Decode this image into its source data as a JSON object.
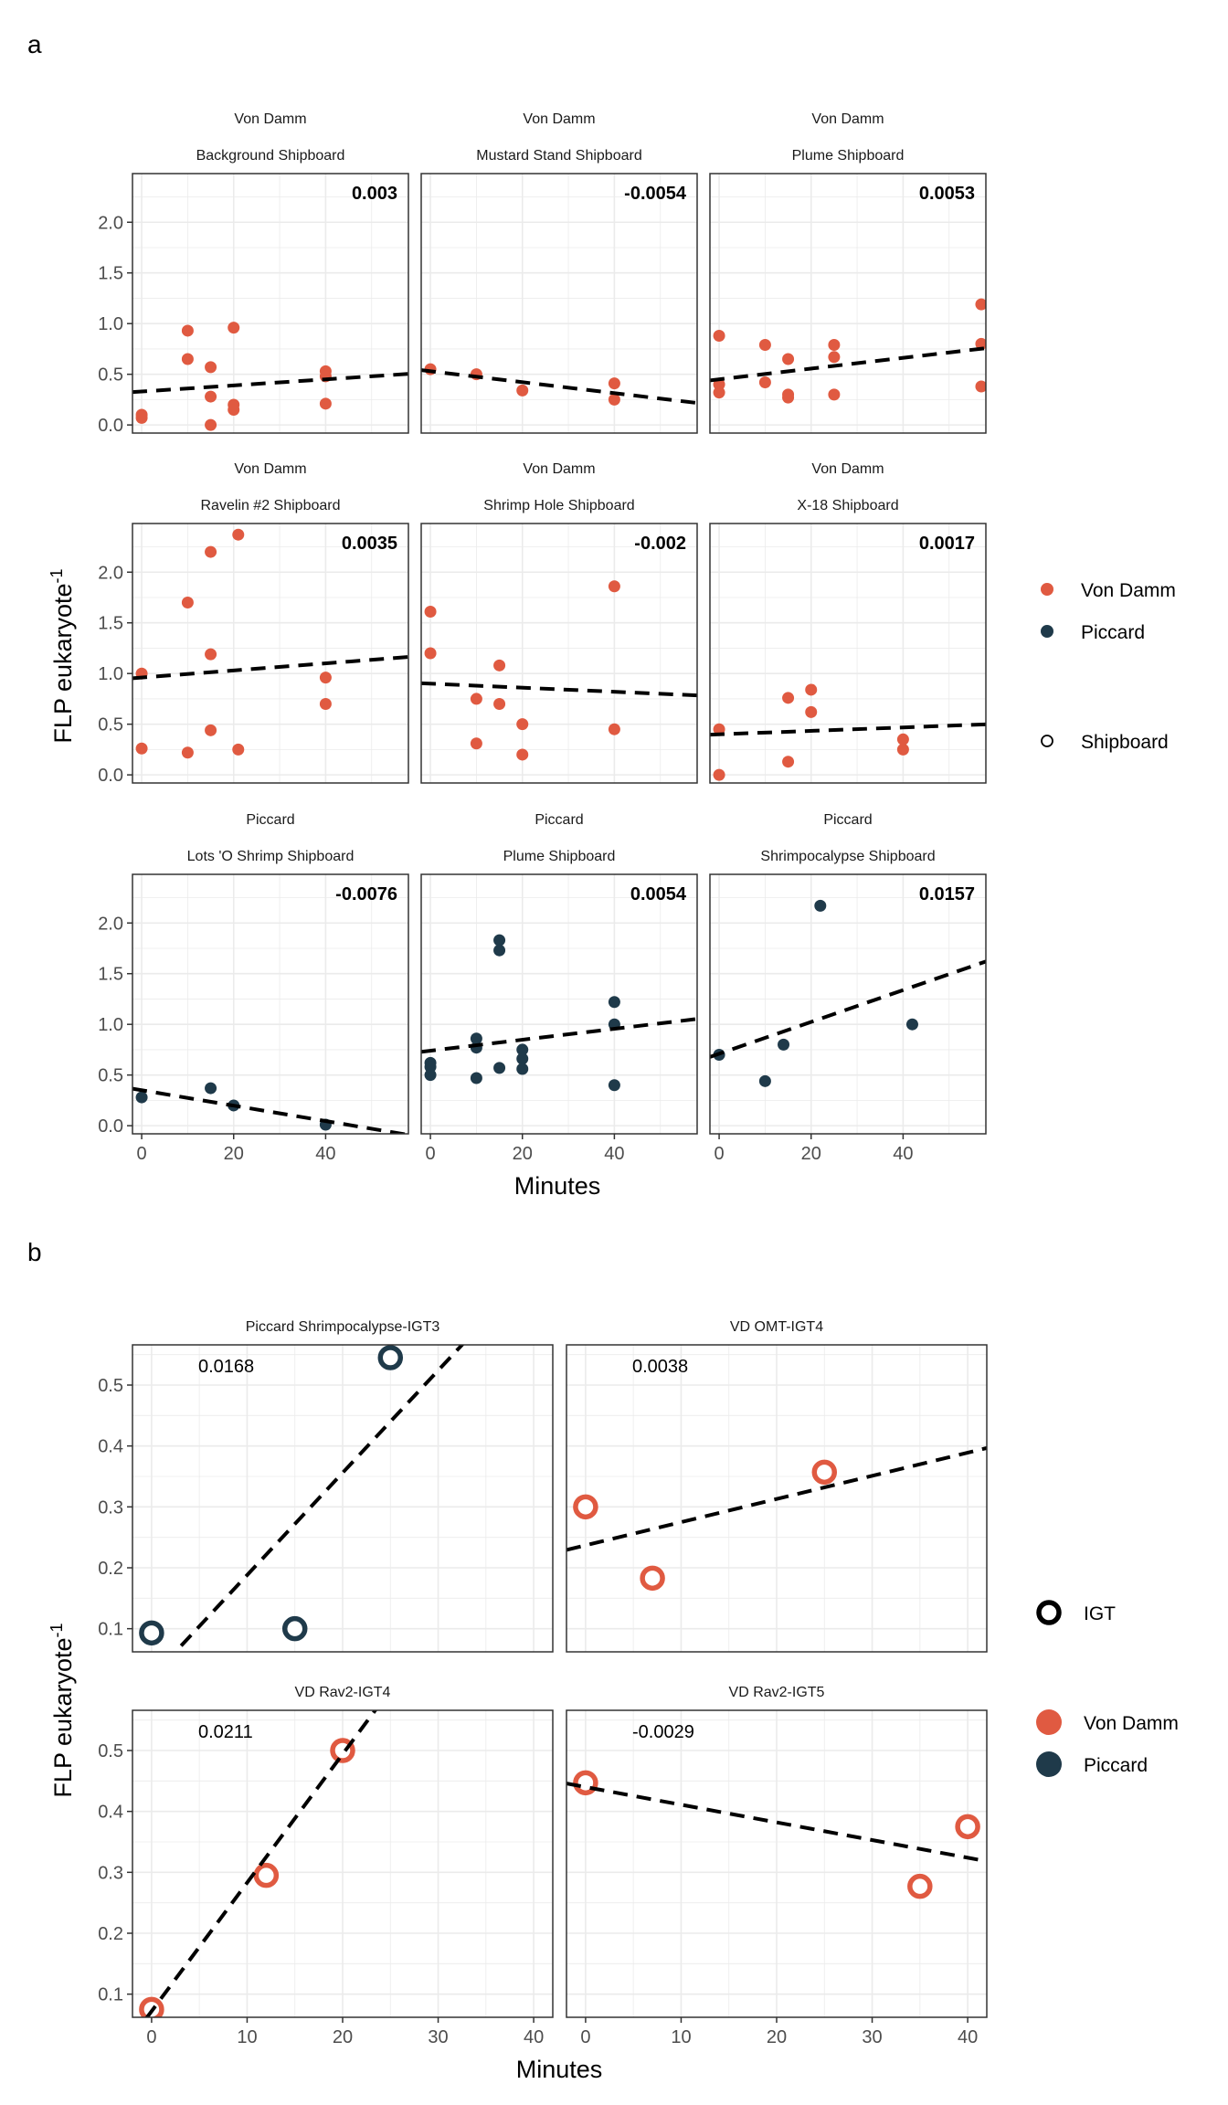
{
  "colors": {
    "Von Damm": "#e05a41",
    "Piccard": "#1f3a4a"
  },
  "chart_data": [
    {
      "panel": "a",
      "type": "scatter",
      "ylabel": "FLP eukaryote",
      "ylabel_sup": "-1",
      "xlabel": "Minutes",
      "xlim": [
        -2,
        58
      ],
      "ylim": [
        -0.08,
        2.48
      ],
      "xticks": [
        0,
        20,
        40
      ],
      "yticks": [
        0.0,
        0.5,
        1.0,
        1.5,
        2.0
      ],
      "ytick_labels": [
        "0.0",
        "0.5",
        "1.0",
        "1.5",
        "2.0"
      ],
      "legend": {
        "position": "right",
        "vent_title": "",
        "vents": [
          "Von Damm",
          "Piccard"
        ],
        "type_entries": [
          "Shipboard"
        ]
      },
      "facets": [
        {
          "site": "Von Damm",
          "sample": "Background Shipboard",
          "vent": "Von Damm",
          "slope_label": "0.003",
          "line": [
            0.33,
            0.003
          ],
          "points": [
            [
              0,
              0.07
            ],
            [
              0,
              0.1
            ],
            [
              10,
              0.93
            ],
            [
              10,
              0.65
            ],
            [
              15,
              0.57
            ],
            [
              15,
              0.28
            ],
            [
              15,
              0.0
            ],
            [
              20,
              0.96
            ],
            [
              20,
              0.2
            ],
            [
              20,
              0.15
            ],
            [
              40,
              0.53
            ],
            [
              40,
              0.48
            ],
            [
              40,
              0.21
            ]
          ]
        },
        {
          "site": "Von Damm",
          "sample": "Mustard Stand Shipboard",
          "vent": "Von Damm",
          "slope_label": "-0.0054",
          "line": [
            0.53,
            -0.0054
          ],
          "points": [
            [
              0,
              0.55
            ],
            [
              10,
              0.5
            ],
            [
              20,
              0.34
            ],
            [
              40,
              0.41
            ],
            [
              40,
              0.25
            ]
          ]
        },
        {
          "site": "Von Damm",
          "sample": "Plume Shipboard",
          "vent": "Von Damm",
          "slope_label": "0.0053",
          "line": [
            0.45,
            0.0053
          ],
          "points": [
            [
              0,
              0.88
            ],
            [
              0,
              0.4
            ],
            [
              0,
              0.32
            ],
            [
              10,
              0.79
            ],
            [
              10,
              0.42
            ],
            [
              15,
              0.65
            ],
            [
              15,
              0.3
            ],
            [
              15,
              0.27
            ],
            [
              25,
              0.79
            ],
            [
              25,
              0.67
            ],
            [
              25,
              0.3
            ],
            [
              57,
              1.19
            ],
            [
              57,
              0.8
            ],
            [
              57,
              0.38
            ]
          ]
        },
        {
          "site": "Von Damm",
          "sample": "Ravelin #2 Shipboard",
          "vent": "Von Damm",
          "slope_label": "0.0035",
          "line": [
            0.96,
            0.0035
          ],
          "points": [
            [
              0,
              1.0
            ],
            [
              0,
              0.26
            ],
            [
              10,
              1.7
            ],
            [
              10,
              0.22
            ],
            [
              15,
              2.2
            ],
            [
              15,
              1.19
            ],
            [
              15,
              0.44
            ],
            [
              21,
              2.37
            ],
            [
              21,
              0.25
            ],
            [
              40,
              0.96
            ],
            [
              40,
              0.7
            ]
          ]
        },
        {
          "site": "Von Damm",
          "sample": "Shrimp Hole Shipboard",
          "vent": "Von Damm",
          "slope_label": "-0.002",
          "line": [
            0.9,
            -0.002
          ],
          "points": [
            [
              0,
              1.61
            ],
            [
              0,
              1.2
            ],
            [
              10,
              0.75
            ],
            [
              10,
              0.31
            ],
            [
              15,
              1.08
            ],
            [
              15,
              0.7
            ],
            [
              20,
              0.5
            ],
            [
              20,
              0.2
            ],
            [
              40,
              1.86
            ],
            [
              40,
              0.45
            ]
          ]
        },
        {
          "site": "Von Damm",
          "sample": "X-18 Shipboard",
          "vent": "Von Damm",
          "slope_label": "0.0017",
          "line": [
            0.4,
            0.0017
          ],
          "points": [
            [
              0,
              0.45
            ],
            [
              0,
              0.0
            ],
            [
              15,
              0.76
            ],
            [
              15,
              0.13
            ],
            [
              20,
              0.84
            ],
            [
              20,
              0.62
            ],
            [
              40,
              0.35
            ],
            [
              40,
              0.25
            ]
          ]
        },
        {
          "site": "Piccard",
          "sample": "Lots 'O Shrimp Shipboard",
          "vent": "Piccard",
          "slope_label": "-0.0076",
          "line": [
            0.35,
            -0.0076
          ],
          "points": [
            [
              0,
              0.28
            ],
            [
              15,
              0.37
            ],
            [
              20,
              0.2
            ],
            [
              40,
              0.01
            ]
          ]
        },
        {
          "site": "Piccard",
          "sample": "Plume Shipboard",
          "vent": "Piccard",
          "slope_label": "0.0054",
          "line": [
            0.74,
            0.0054
          ],
          "points": [
            [
              0,
              0.62
            ],
            [
              0,
              0.58
            ],
            [
              0,
              0.5
            ],
            [
              10,
              0.86
            ],
            [
              10,
              0.77
            ],
            [
              10,
              0.47
            ],
            [
              15,
              1.83
            ],
            [
              15,
              1.73
            ],
            [
              15,
              0.57
            ],
            [
              20,
              0.75
            ],
            [
              20,
              0.66
            ],
            [
              20,
              0.56
            ],
            [
              40,
              1.22
            ],
            [
              40,
              1.0
            ],
            [
              40,
              0.4
            ]
          ]
        },
        {
          "site": "Piccard",
          "sample": "Shrimpocalypse Shipboard",
          "vent": "Piccard",
          "slope_label": "0.0157",
          "line": [
            0.71,
            0.0157
          ],
          "points": [
            [
              0,
              0.7
            ],
            [
              10,
              0.44
            ],
            [
              14,
              0.8
            ],
            [
              22,
              2.17
            ],
            [
              42,
              1.0
            ]
          ]
        }
      ]
    },
    {
      "panel": "b",
      "type": "scatter",
      "ylabel": "FLP eukaryote",
      "ylabel_sup": "-1",
      "xlabel": "Minutes",
      "xlim": [
        -2,
        42
      ],
      "ylim": [
        0.062,
        0.566
      ],
      "xticks": [
        0,
        10,
        20,
        30,
        40
      ],
      "yticks": [
        0.1,
        0.2,
        0.3,
        0.4,
        0.5
      ],
      "ytick_labels": [
        "0.1",
        "0.2",
        "0.3",
        "0.4",
        "0.5"
      ],
      "legend": {
        "position": "right",
        "type_entries": [
          "IGT"
        ],
        "vent_title": "",
        "vents": [
          "Von Damm",
          "Piccard"
        ]
      },
      "facets": [
        {
          "sample": "Piccard Shrimpocalypse-IGT3",
          "vent": "Piccard",
          "slope_label": "0.0168",
          "line": [
            0.02,
            0.0168
          ],
          "points": [
            [
              0,
              0.093
            ],
            [
              15,
              0.1
            ],
            [
              25,
              0.545
            ]
          ]
        },
        {
          "sample": "VD OMT-IGT4",
          "vent": "Von Damm",
          "slope_label": "0.0038",
          "line": [
            0.237,
            0.0038
          ],
          "points": [
            [
              0,
              0.3
            ],
            [
              7,
              0.183
            ],
            [
              25,
              0.357
            ]
          ]
        },
        {
          "sample": "VD Rav2-IGT4",
          "vent": "Von Damm",
          "slope_label": "0.0211",
          "line": [
            0.072,
            0.0211
          ],
          "points": [
            [
              0,
              0.075
            ],
            [
              12,
              0.295
            ],
            [
              20,
              0.5
            ]
          ]
        },
        {
          "sample": "VD Rav2-IGT5",
          "vent": "Von Damm",
          "slope_label": "-0.0029",
          "line": [
            0.44,
            -0.0029
          ],
          "points": [
            [
              0,
              0.447
            ],
            [
              35,
              0.277
            ],
            [
              40,
              0.375
            ]
          ]
        }
      ]
    }
  ],
  "panel_labels": [
    "a",
    "b"
  ]
}
